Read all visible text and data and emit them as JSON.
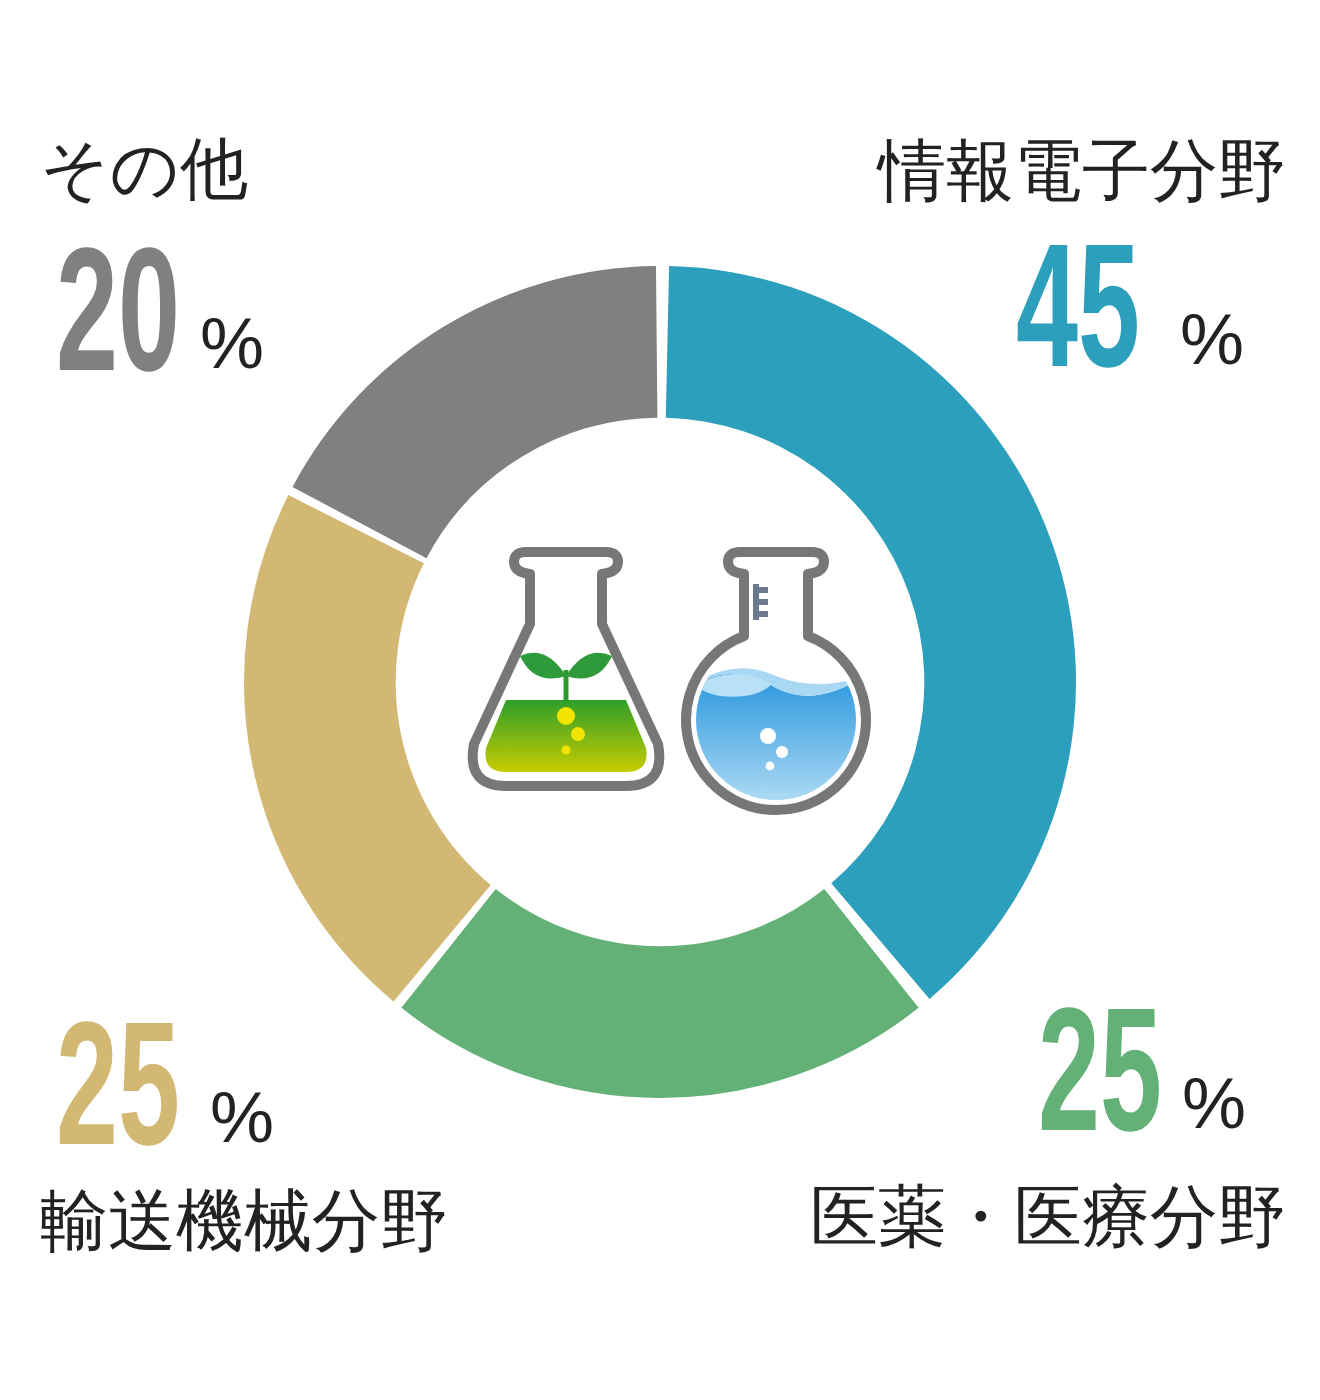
{
  "chart_data": {
    "type": "donut",
    "categories": [
      "情報電子分野",
      "医薬・医療分野",
      "輸送機械分野",
      "その他"
    ],
    "values": [
      45,
      25,
      25,
      20
    ],
    "colors": [
      "#2b9fbb",
      "#63b177",
      "#d3b873",
      "#808080"
    ],
    "value_labels": [
      "45%",
      "25%",
      "25%",
      "20%"
    ]
  }
}
